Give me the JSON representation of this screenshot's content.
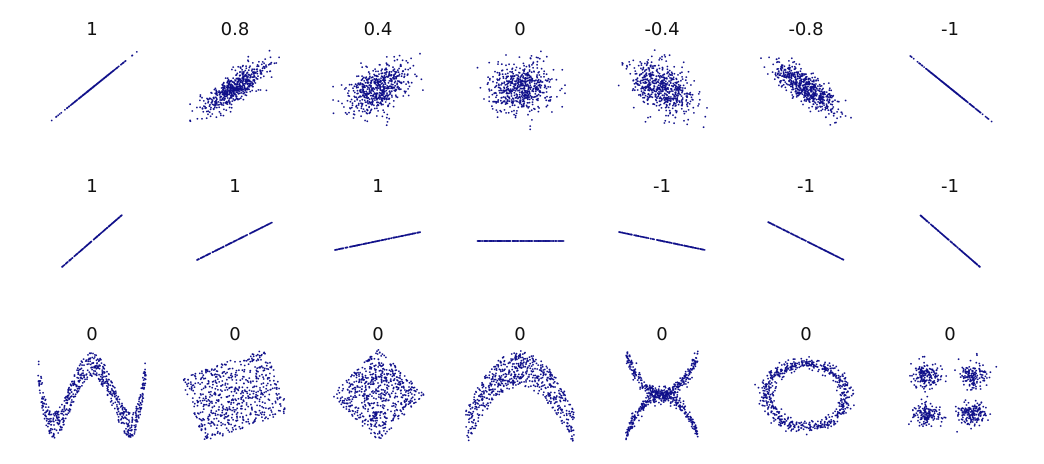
{
  "rows": [
    [
      "1",
      "0.8",
      "0.4",
      "0",
      "-0.4",
      "-0.8",
      "-1"
    ],
    [
      "1",
      "1",
      "1",
      null,
      "-1",
      "-1",
      "-1"
    ],
    [
      "0",
      "0",
      "0",
      "0",
      "0",
      "0",
      "0"
    ]
  ]
}
